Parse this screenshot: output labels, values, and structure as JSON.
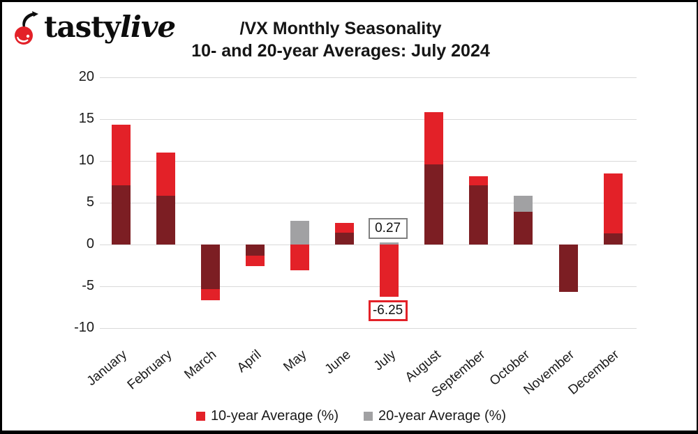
{
  "logo": {
    "brand_part1": "tasty",
    "brand_part2": "live",
    "icon": "cherry-icon"
  },
  "chart_data": {
    "type": "bar",
    "title": "/VX Monthly Seasonality",
    "subtitle": "10- and 20-year Averages: July 2024",
    "categories": [
      "January",
      "February",
      "March",
      "April",
      "May",
      "June",
      "July",
      "August",
      "September",
      "October",
      "November",
      "December"
    ],
    "series": [
      {
        "name": "10-year Average (%)",
        "color": "#e32128",
        "values": [
          14.3,
          11.0,
          -6.7,
          -2.6,
          -3.1,
          2.6,
          -6.25,
          15.8,
          8.2,
          3.9,
          -5.7,
          8.5
        ]
      },
      {
        "name": "20-year Average (%)",
        "color": "#a1a1a3",
        "values": [
          7.1,
          5.8,
          -5.3,
          -1.3,
          2.8,
          1.4,
          0.27,
          9.6,
          7.1,
          5.8,
          -5.7,
          1.3
        ]
      }
    ],
    "overlap_color": "#7c1e23",
    "gridline_color": "#d9d9d9",
    "yticks": [
      20,
      15,
      10,
      5,
      0,
      -5,
      -10
    ],
    "ylim": [
      -10,
      20
    ],
    "legend_position": "bottom",
    "grid": true,
    "annotations": [
      {
        "category": "July",
        "series_index": 1,
        "text": "0.27",
        "border_color": "#808080",
        "border_width": 2
      },
      {
        "category": "July",
        "series_index": 0,
        "text": "-6.25",
        "border_color": "#e32128",
        "border_width": 3
      }
    ]
  }
}
